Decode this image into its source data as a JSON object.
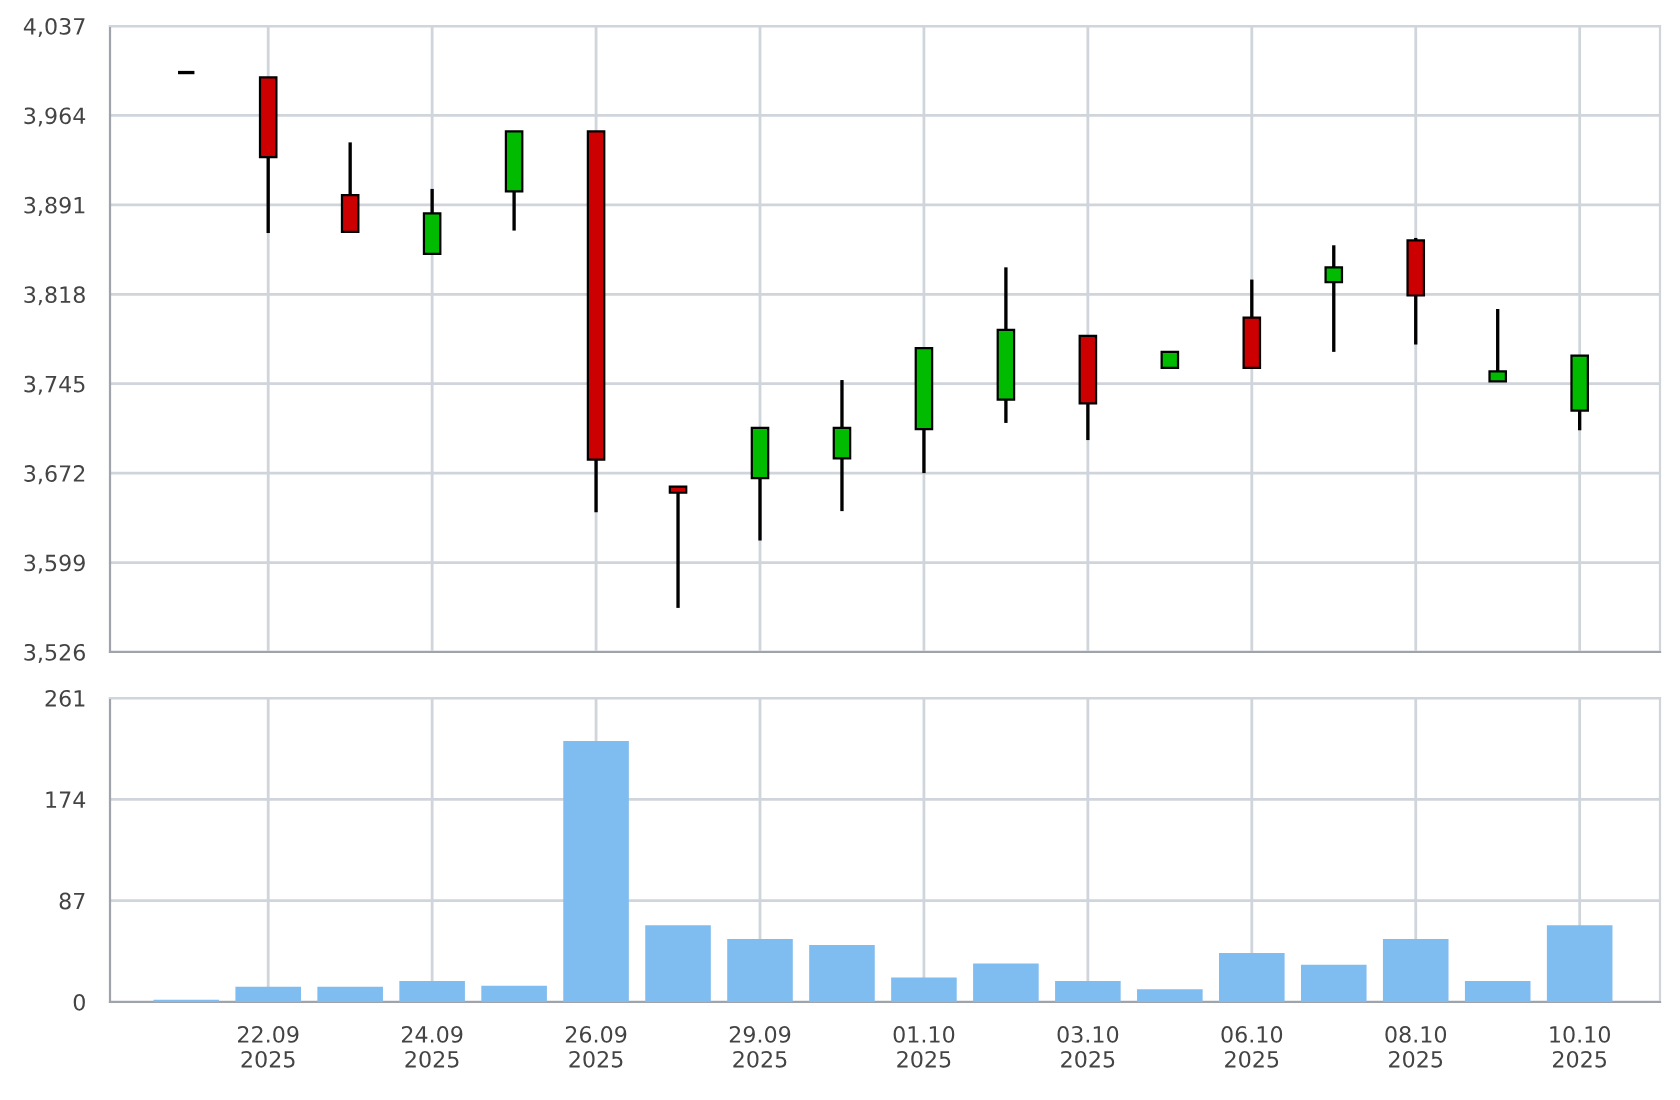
{
  "chart_data": [
    {
      "type": "candlestick",
      "categories": [
        null,
        null,
        null,
        null,
        null,
        null,
        null,
        null,
        null,
        null,
        null,
        null,
        null,
        null,
        null,
        null,
        null,
        null
      ],
      "ohlc": [
        [
          3999,
          3999,
          3999,
          3999
        ],
        [
          3995,
          3995,
          3868,
          3930
        ],
        [
          3899,
          3942,
          3869,
          3869
        ],
        [
          3851,
          3904,
          3851,
          3884
        ],
        [
          3902,
          3951,
          3870,
          3951
        ],
        [
          3951,
          3951,
          3640,
          3683
        ],
        [
          3661,
          3661,
          3562,
          3656
        ],
        [
          3668,
          3709,
          3617,
          3709
        ],
        [
          3684,
          3748,
          3641,
          3709
        ],
        [
          3708,
          3774,
          3672,
          3774
        ],
        [
          3732,
          3840,
          3713,
          3789
        ],
        [
          3784,
          3784,
          3699,
          3729
        ],
        [
          3758,
          3771,
          3758,
          3771
        ],
        [
          3799,
          3830,
          3758,
          3758
        ],
        [
          3828,
          3858,
          3771,
          3840
        ],
        [
          3862,
          3864,
          3777,
          3817
        ],
        [
          3747,
          3806,
          3747,
          3755
        ],
        [
          3723,
          3768,
          3707,
          3768
        ]
      ],
      "colors": [
        "#000000",
        "#cc0000",
        "#cc0000",
        "#00bb00",
        "#00bb00",
        "#cc0000",
        "#cc0000",
        "#00bb00",
        "#00bb00",
        "#00bb00",
        "#00bb00",
        "#cc0000",
        "#00bb00",
        "#cc0000",
        "#00bb00",
        "#cc0000",
        "#00bb00",
        "#00bb00"
      ],
      "ylim": [
        3526,
        4037
      ],
      "yticks": [
        {
          "value": 3526,
          "label": "3,526"
        },
        {
          "value": 3599,
          "label": "3,599"
        },
        {
          "value": 3672,
          "label": "3,672"
        },
        {
          "value": 3745,
          "label": "3,745"
        },
        {
          "value": 3818,
          "label": "3,818"
        },
        {
          "value": 3891,
          "label": "3,891"
        },
        {
          "value": 3964,
          "label": "3,964"
        },
        {
          "value": 4037,
          "label": "4,037"
        }
      ],
      "grid": true,
      "tick_labels": "y"
    },
    {
      "type": "bar",
      "categories": [
        null,
        "22.09\n2025",
        null,
        "24.09\n2025",
        null,
        "26.09\n2025",
        null,
        "29.09\n2025",
        null,
        "01.10\n2025",
        null,
        "03.10\n2025",
        null,
        "06.10\n2025",
        null,
        "08.10\n2025",
        null,
        "10.10\n2025"
      ],
      "series": [
        {
          "color": "#7fbcef",
          "values": [
            2,
            13,
            13,
            18,
            14,
            224,
            66,
            54,
            49,
            21,
            33,
            18,
            11,
            42,
            32,
            54,
            18,
            66
          ]
        }
      ],
      "ylim": [
        0,
        261
      ],
      "yticks": [
        0,
        87,
        174,
        261
      ],
      "grid": true
    }
  ]
}
